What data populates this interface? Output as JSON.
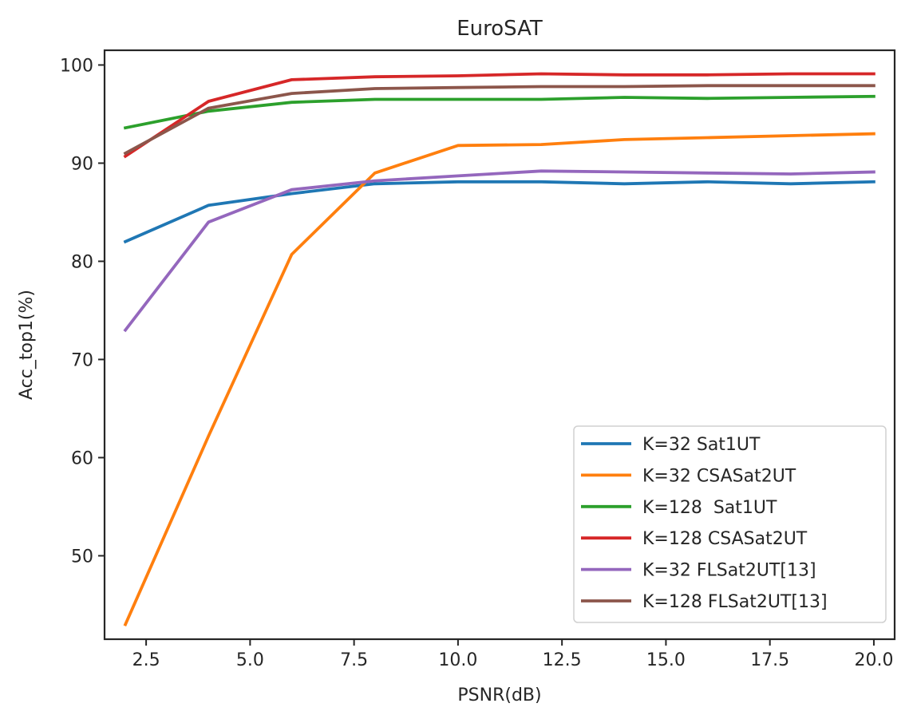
{
  "chart_data": {
    "type": "line",
    "title": "EuroSAT",
    "xlabel": "PSNR(dB)",
    "ylabel": "Acc_top1(%)",
    "xlim": [
      1.5,
      20.5
    ],
    "ylim": [
      41.5,
      101.5
    ],
    "xticks": [
      2.5,
      5.0,
      7.5,
      10.0,
      12.5,
      15.0,
      17.5,
      20.0
    ],
    "xtick_labels": [
      "2.5",
      "5.0",
      "7.5",
      "10.0",
      "12.5",
      "15.0",
      "17.5",
      "20.0"
    ],
    "yticks": [
      50,
      60,
      70,
      80,
      90,
      100
    ],
    "ytick_labels": [
      "50",
      "60",
      "70",
      "80",
      "90",
      "100"
    ],
    "grid": false,
    "legend_position": "lower-right",
    "x": [
      2,
      4,
      6,
      8,
      10,
      12,
      14,
      16,
      18,
      20
    ],
    "series": [
      {
        "name": "K=32 Sat1UT",
        "color": "#1f77b4",
        "values": [
          82.0,
          85.7,
          86.9,
          87.9,
          88.1,
          88.1,
          87.9,
          88.1,
          87.9,
          88.1
        ]
      },
      {
        "name": "K=32 CSASat2UT",
        "color": "#ff7f0e",
        "values": [
          43.0,
          62.2,
          80.7,
          89.0,
          91.8,
          91.9,
          92.4,
          92.6,
          92.8,
          93.0
        ]
      },
      {
        "name": "K=128  Sat1UT",
        "color": "#2ca02c",
        "values": [
          93.6,
          95.3,
          96.2,
          96.5,
          96.5,
          96.5,
          96.7,
          96.6,
          96.7,
          96.8
        ]
      },
      {
        "name": "K=128 CSASat2UT",
        "color": "#d62728",
        "values": [
          90.7,
          96.3,
          98.5,
          98.8,
          98.9,
          99.1,
          99.0,
          99.0,
          99.1,
          99.1
        ]
      },
      {
        "name": "K=32 FLSat2UT[13]",
        "color": "#9467bd",
        "values": [
          73.0,
          84.0,
          87.3,
          88.2,
          88.7,
          89.2,
          89.1,
          89.0,
          88.9,
          89.1
        ]
      },
      {
        "name": "K=128 FLSat2UT[13]",
        "color": "#8c564b",
        "values": [
          91.0,
          95.6,
          97.1,
          97.6,
          97.7,
          97.8,
          97.8,
          97.9,
          97.9,
          97.9
        ]
      }
    ]
  }
}
